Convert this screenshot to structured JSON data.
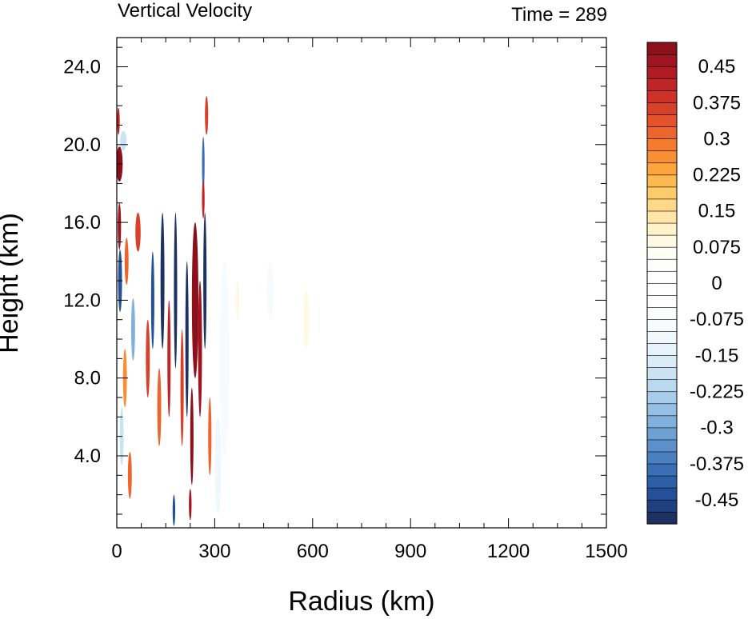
{
  "chart_data": {
    "type": "heatmap",
    "title_left": "Vertical Velocity",
    "title_right": "Time = 289",
    "xlabel": "Radius (km)",
    "ylabel": "Height (km)",
    "xlim": [
      0,
      1500
    ],
    "ylim": [
      0.3,
      25.5
    ],
    "x_ticks": [
      0,
      300,
      600,
      900,
      1200,
      1500
    ],
    "x_tick_labels": [
      "0",
      "300",
      "600",
      "900",
      "1200",
      "1500"
    ],
    "y_ticks": [
      4,
      8,
      12,
      16,
      20,
      24
    ],
    "y_tick_labels": [
      "4.0",
      "8.0",
      "12.0",
      "16.0",
      "20.0",
      "24.0"
    ],
    "colorbar": {
      "levels": [
        -0.5,
        -0.475,
        -0.45,
        -0.425,
        -0.4,
        -0.375,
        -0.35,
        -0.325,
        -0.3,
        -0.275,
        -0.25,
        -0.225,
        -0.2,
        -0.175,
        -0.15,
        -0.125,
        -0.1,
        -0.075,
        -0.05,
        -0.025,
        0,
        0.025,
        0.05,
        0.075,
        0.1,
        0.125,
        0.15,
        0.175,
        0.2,
        0.225,
        0.25,
        0.275,
        0.3,
        0.325,
        0.35,
        0.375,
        0.4,
        0.425,
        0.45,
        0.475,
        0.5
      ],
      "labels": [
        "-0.45",
        "-0.375",
        "-0.3",
        "-0.225",
        "-0.15",
        "-0.075",
        "0",
        "0.075",
        "0.15",
        "0.225",
        "0.3",
        "0.375",
        "0.45"
      ],
      "label_values": [
        -0.45,
        -0.375,
        -0.3,
        -0.225,
        -0.15,
        -0.075,
        0,
        0.075,
        0.15,
        0.225,
        0.3,
        0.375,
        0.45
      ],
      "colors": [
        "#1d3163",
        "#20407f",
        "#244f99",
        "#2d5fa8",
        "#3a6fb5",
        "#4a80c0",
        "#5b90ca",
        "#6ea0d3",
        "#82b0dc",
        "#95bfe4",
        "#a8cdea",
        "#bad9ef",
        "#cae3f3",
        "#d9ecf7",
        "#e6f3fa",
        "#f0f8fc",
        "#f7fbfd",
        "#fbfdfe",
        "#ffffff",
        "#ffffff",
        "#ffffff",
        "#ffffff",
        "#fffdf5",
        "#fff8e3",
        "#fff1c9",
        "#ffe6a8",
        "#ffd987",
        "#fecb69",
        "#fdb94f",
        "#fca43d",
        "#f98f33",
        "#f47a2e",
        "#ec652c",
        "#e3522b",
        "#d8402a",
        "#cc3228",
        "#bf2526",
        "#b01b23",
        "#9f1420",
        "#8c0f1c"
      ]
    },
    "cells": [
      {
        "r": 8,
        "z": 19.0,
        "w": 0.5,
        "dr": 10,
        "dz": 0.9
      },
      {
        "r": 5,
        "z": 21.2,
        "w": 0.4,
        "dr": 4,
        "dz": 0.7
      },
      {
        "r": 20,
        "z": 20.2,
        "w": -0.2,
        "dr": 10,
        "dz": 0.5
      },
      {
        "r": 8,
        "z": 15.8,
        "w": 0.45,
        "dr": 5,
        "dz": 1.2
      },
      {
        "r": 65,
        "z": 15.5,
        "w": 0.35,
        "dr": 8,
        "dz": 1.0
      },
      {
        "r": 10,
        "z": 13.0,
        "w": -0.45,
        "dr": 6,
        "dz": 1.6
      },
      {
        "r": 30,
        "z": 14.0,
        "w": 0.3,
        "dr": 6,
        "dz": 1.2
      },
      {
        "r": 50,
        "z": 10.5,
        "w": -0.3,
        "dr": 6,
        "dz": 1.6
      },
      {
        "r": 25,
        "z": 8.0,
        "w": 0.25,
        "dr": 6,
        "dz": 1.5
      },
      {
        "r": 15,
        "z": 5.0,
        "w": -0.2,
        "dr": 6,
        "dz": 1.5
      },
      {
        "r": 40,
        "z": 3.0,
        "w": 0.3,
        "dr": 6,
        "dz": 1.2
      },
      {
        "r": 110,
        "z": 12.0,
        "w": -0.45,
        "dr": 5,
        "dz": 2.5
      },
      {
        "r": 95,
        "z": 9.0,
        "w": 0.35,
        "dr": 6,
        "dz": 2.0
      },
      {
        "r": 140,
        "z": 13.0,
        "w": -0.5,
        "dr": 6,
        "dz": 3.5
      },
      {
        "r": 130,
        "z": 6.5,
        "w": 0.3,
        "dr": 6,
        "dz": 2.0
      },
      {
        "r": 160,
        "z": 9.0,
        "w": 0.4,
        "dr": 5,
        "dz": 3.0
      },
      {
        "r": 180,
        "z": 12.5,
        "w": -0.5,
        "dr": 5,
        "dz": 4.0
      },
      {
        "r": 200,
        "z": 7.5,
        "w": 0.35,
        "dr": 5,
        "dz": 3.0
      },
      {
        "r": 215,
        "z": 10.0,
        "w": -0.5,
        "dr": 5,
        "dz": 4.0
      },
      {
        "r": 240,
        "z": 12.0,
        "w": 0.5,
        "dr": 10,
        "dz": 4.0
      },
      {
        "r": 230,
        "z": 5.0,
        "w": 0.5,
        "dr": 5,
        "dz": 2.5
      },
      {
        "r": 255,
        "z": 9.5,
        "w": 0.45,
        "dr": 6,
        "dz": 3.5
      },
      {
        "r": 270,
        "z": 13.0,
        "w": -0.5,
        "dr": 5,
        "dz": 3.5
      },
      {
        "r": 265,
        "z": 19.0,
        "w": -0.4,
        "dr": 4,
        "dz": 1.4
      },
      {
        "r": 275,
        "z": 21.5,
        "w": 0.35,
        "dr": 5,
        "dz": 1.0
      },
      {
        "r": 265,
        "z": 17.2,
        "w": 0.4,
        "dr": 4,
        "dz": 1.0
      },
      {
        "r": 285,
        "z": 5.0,
        "w": 0.3,
        "dr": 5,
        "dz": 2.0
      },
      {
        "r": 175,
        "z": 1.2,
        "w": -0.45,
        "dr": 4,
        "dz": 0.8
      },
      {
        "r": 225,
        "z": 1.5,
        "w": 0.45,
        "dr": 4,
        "dz": 0.8
      },
      {
        "r": 330,
        "z": 9.0,
        "w": -0.1,
        "dr": 15,
        "dz": 5.0
      },
      {
        "r": 310,
        "z": 3.5,
        "w": -0.12,
        "dr": 10,
        "dz": 2.5
      },
      {
        "r": 370,
        "z": 12.0,
        "w": 0.08,
        "dr": 5,
        "dz": 1.0
      },
      {
        "r": 580,
        "z": 11.0,
        "w": 0.08,
        "dr": 8,
        "dz": 1.5
      },
      {
        "r": 470,
        "z": 12.5,
        "w": -0.08,
        "dr": 10,
        "dz": 1.5
      }
    ]
  }
}
